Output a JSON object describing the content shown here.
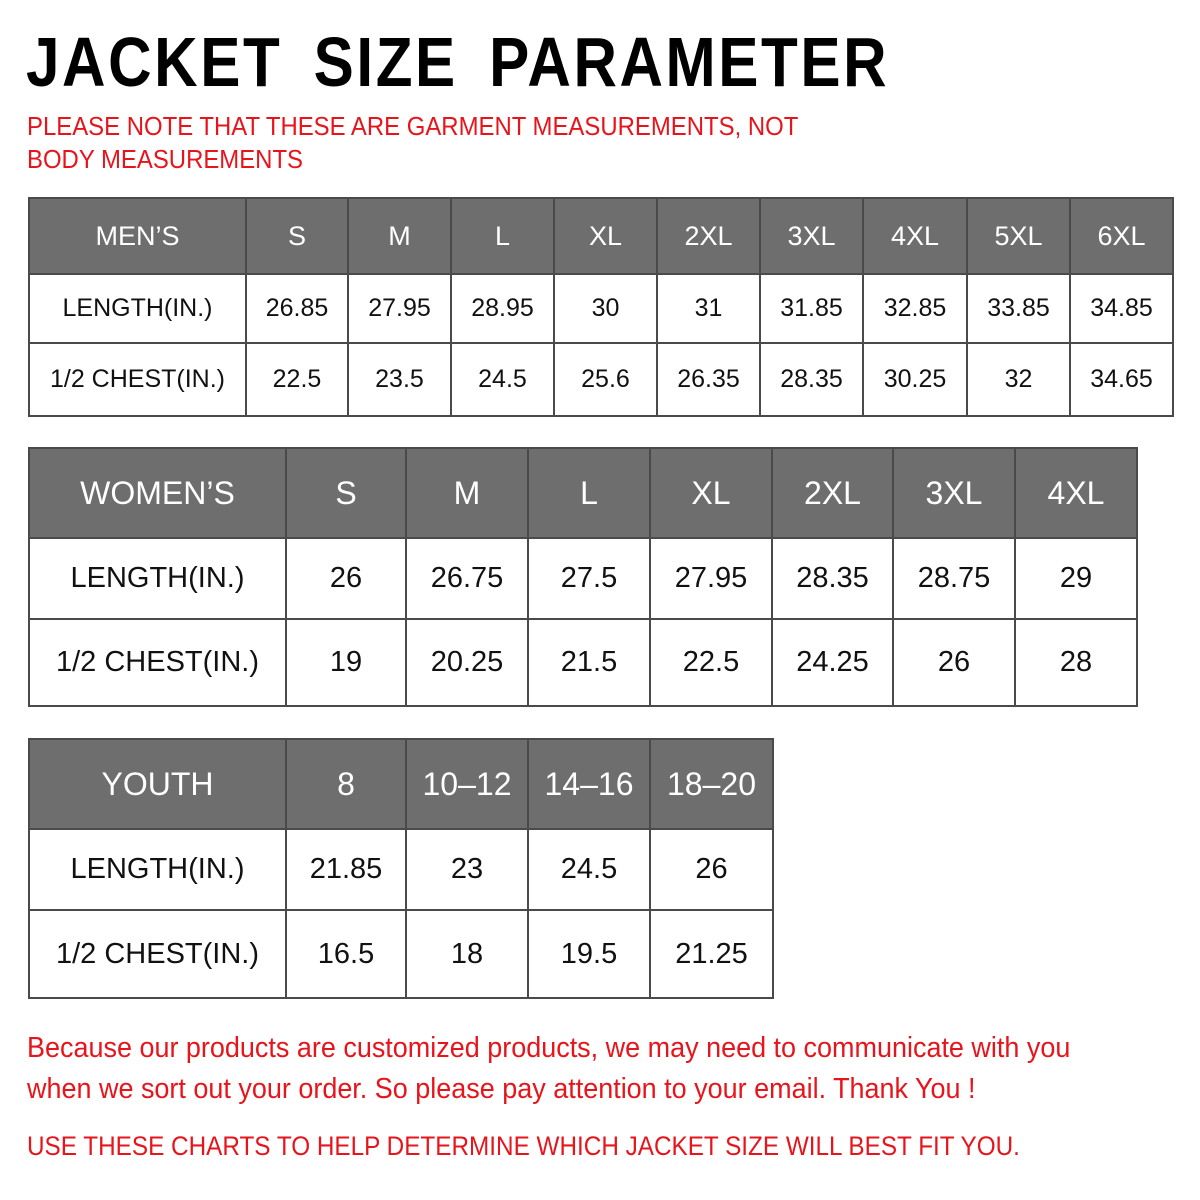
{
  "title": "JACKET SIZE PARAMETER",
  "note": "PLEASE NOTE THAT THESE ARE GARMENT MEASUREMENTS, NOT BODY MEASUREMENTS",
  "colors": {
    "header_bg": "#6e6e6e",
    "accent_red": "#e8141b"
  },
  "tables": {
    "men": {
      "header": [
        "MEN’S",
        "S",
        "M",
        "L",
        "XL",
        "2XL",
        "3XL",
        "4XL",
        "5XL",
        "6XL"
      ],
      "rows": [
        [
          "LENGTH(IN.)",
          "26.85",
          "27.95",
          "28.95",
          "30",
          "31",
          "31.85",
          "32.85",
          "33.85",
          "34.85"
        ],
        [
          "1/2 CHEST(IN.)",
          "22.5",
          "23.5",
          "24.5",
          "25.6",
          "26.35",
          "28.35",
          "30.25",
          "32",
          "34.65"
        ]
      ]
    },
    "women": {
      "header": [
        "WOMEN’S",
        "S",
        "M",
        "L",
        "XL",
        "2XL",
        "3XL",
        "4XL"
      ],
      "rows": [
        [
          "LENGTH(IN.)",
          "26",
          "26.75",
          "27.5",
          "27.95",
          "28.35",
          "28.75",
          "29"
        ],
        [
          "1/2 CHEST(IN.)",
          "19",
          "20.25",
          "21.5",
          "22.5",
          "24.25",
          "26",
          "28"
        ]
      ]
    },
    "youth": {
      "header": [
        "YOUTH",
        "8",
        "10–12",
        "14–16",
        "18–20"
      ],
      "rows": [
        [
          "LENGTH(IN.)",
          "21.85",
          "23",
          "24.5",
          "26"
        ],
        [
          "1/2 CHEST(IN.)",
          "16.5",
          "18",
          "19.5",
          "21.25"
        ]
      ]
    }
  },
  "footer": {
    "message_line1": "Because our products are customized products, we may need to communicate with you",
    "message_line2": "when we sort out your order. So please pay attention to your email. Thank You !",
    "usage": "USE THESE CHARTS TO HELP DETERMINE WHICH JACKET SIZE WILL BEST FIT YOU."
  }
}
